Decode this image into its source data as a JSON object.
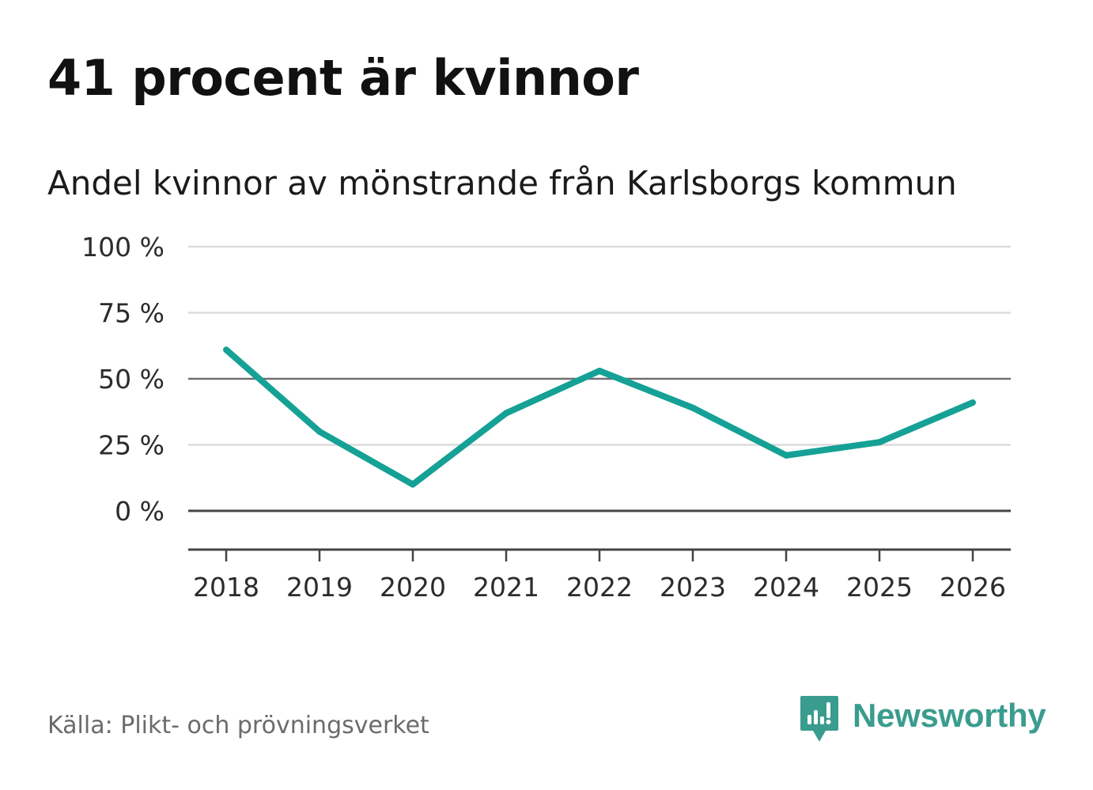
{
  "header": {
    "title": "41 procent är kvinnor",
    "subtitle": "Andel kvinnor av mönstrande från Karlsborgs kommun"
  },
  "footer": {
    "source": "Källa: Plikt- och prövningsverket",
    "brand": "Newsworthy"
  },
  "colors": {
    "line": "#15a195",
    "gridline": "#dcdcdc",
    "reference_line": "#6f6f6f",
    "zero_line": "#444444",
    "axis_text": "#2b2b2b",
    "brand": "#3a9c8e"
  },
  "chart_data": {
    "type": "line",
    "title": "41 procent är kvinnor",
    "subtitle": "Andel kvinnor av mönstrande från Karlsborgs kommun",
    "xlabel": "",
    "ylabel": "",
    "x": [
      "2018",
      "2019",
      "2020",
      "2021",
      "2022",
      "2023",
      "2024",
      "2025",
      "2026"
    ],
    "series": [
      {
        "name": "Andel kvinnor",
        "values": [
          61,
          30,
          10,
          37,
          53,
          39,
          21,
          26,
          41
        ]
      }
    ],
    "yticks": [
      0,
      25,
      50,
      75,
      100
    ],
    "ytick_labels": [
      "0 %",
      "25 %",
      "50 %",
      "75 %",
      "100 %"
    ],
    "ylim": [
      -15,
      100
    ],
    "reference_value": 50,
    "grid": true,
    "legend": "none"
  }
}
